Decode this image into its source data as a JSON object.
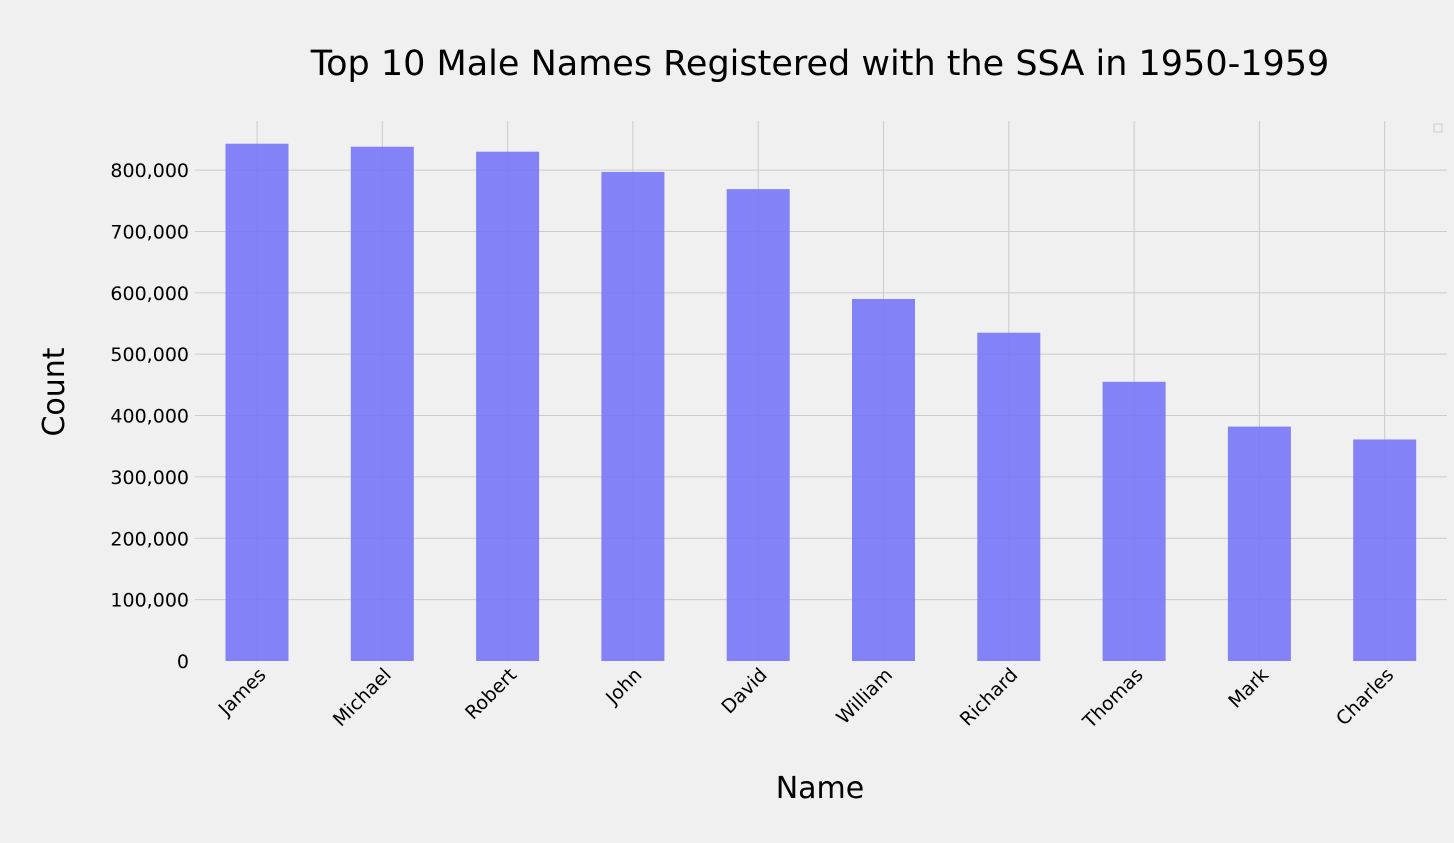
{
  "chart_data": {
    "type": "bar",
    "title": "Top 10 Male Names Registered with the SSA in 1950-1959",
    "xlabel": "Name",
    "ylabel": "Count",
    "categories": [
      "James",
      "Michael",
      "Robert",
      "John",
      "David",
      "William",
      "Richard",
      "Thomas",
      "Mark",
      "Charles"
    ],
    "values": [
      843000,
      838000,
      830000,
      797000,
      769000,
      590000,
      535000,
      455000,
      382000,
      361000
    ],
    "ylim": [
      0,
      880000
    ],
    "yticks": [
      0,
      100000,
      200000,
      300000,
      400000,
      500000,
      600000,
      700000,
      800000
    ],
    "ytick_labels": [
      "0",
      "100,000",
      "200,000",
      "300,000",
      "400,000",
      "500,000",
      "600,000",
      "700,000",
      "800,000"
    ],
    "grid": true,
    "bar_color": "#7777f7",
    "background": "#f0f0f0",
    "legend": "top-right (empty)"
  }
}
